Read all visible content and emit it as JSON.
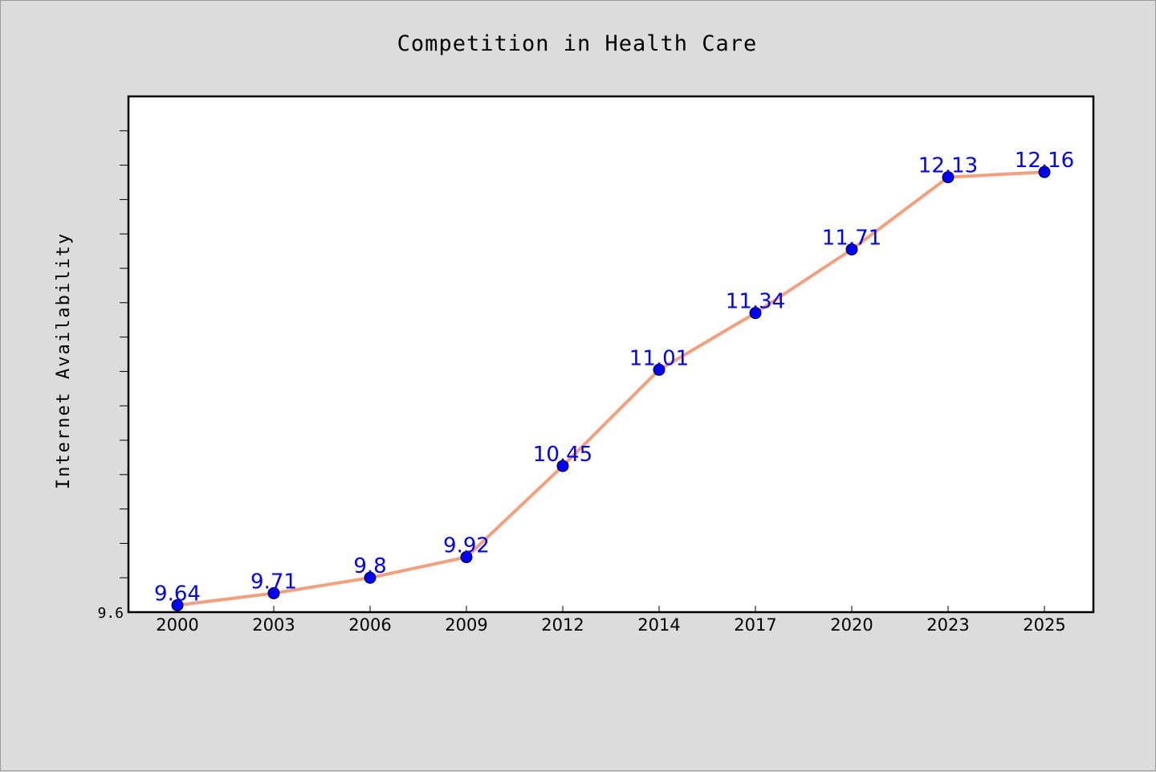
{
  "chart_data": {
    "type": "line",
    "title": "Competition in Health Care",
    "xlabel": "",
    "ylabel": "Internet Availability",
    "categories": [
      "2000",
      "2003",
      "2006",
      "2009",
      "2012",
      "2014",
      "2017",
      "2020",
      "2023",
      "2025"
    ],
    "series": [
      {
        "values": [
          9.64,
          9.71,
          9.8,
          9.92,
          10.45,
          11.01,
          11.34,
          11.71,
          12.13,
          12.16
        ]
      }
    ],
    "data_labels": [
      "9.64",
      "9.71",
      "9.8",
      "9.92",
      "10.45",
      "11.01",
      "11.34",
      "11.71",
      "12.13",
      "12.16"
    ],
    "ylim": [
      9.6,
      12.6
    ],
    "y_tick_labels": [
      {
        "value": 9.6,
        "label": "9.6"
      }
    ],
    "y_minor_tick_step": 0.2,
    "grid": false,
    "legend": "none",
    "colors": {
      "line": "#f4a07e",
      "marker_fill": "#0000ff",
      "marker_edge": "#000000",
      "data_label": "#0000ff",
      "plot_background": "#ffffff",
      "figure_background": "#dcdcdc"
    }
  }
}
